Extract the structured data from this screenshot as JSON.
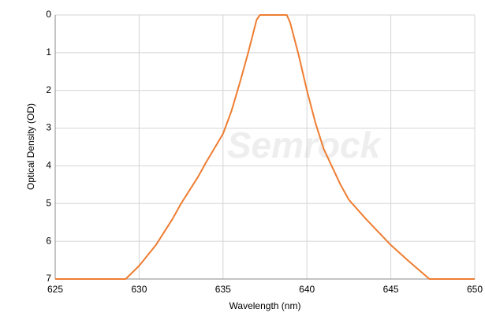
{
  "chart_data": {
    "type": "line",
    "watermark": "Semrock",
    "x_label": "Wavelength (nm)",
    "y_label": "Optical Density (OD)",
    "x": [
      625,
      629.2,
      630,
      631,
      632,
      632.5,
      633.5,
      634,
      635,
      635.5,
      636,
      636.5,
      637,
      637.2,
      638.8,
      639,
      639.5,
      640,
      640.5,
      641,
      642,
      642.5,
      643.5,
      645,
      646,
      647.3,
      650
    ],
    "series": [
      {
        "name": "OD",
        "color": "#ee7d31",
        "values": [
          7,
          7,
          6.65,
          6.1,
          5.4,
          5.0,
          4.3,
          3.9,
          3.15,
          2.55,
          1.8,
          1.0,
          0.13,
          0,
          0,
          0.2,
          1.05,
          2.0,
          2.85,
          3.55,
          4.5,
          4.9,
          5.4,
          6.1,
          6.5,
          7,
          7
        ]
      }
    ],
    "xlim": [
      625,
      650
    ],
    "xticks": [
      625,
      630,
      635,
      640,
      645,
      650
    ],
    "ylim": [
      0,
      7
    ],
    "yticks": [
      0,
      1,
      2,
      3,
      4,
      5,
      6,
      7
    ],
    "y_inverted": true,
    "grid": true
  }
}
